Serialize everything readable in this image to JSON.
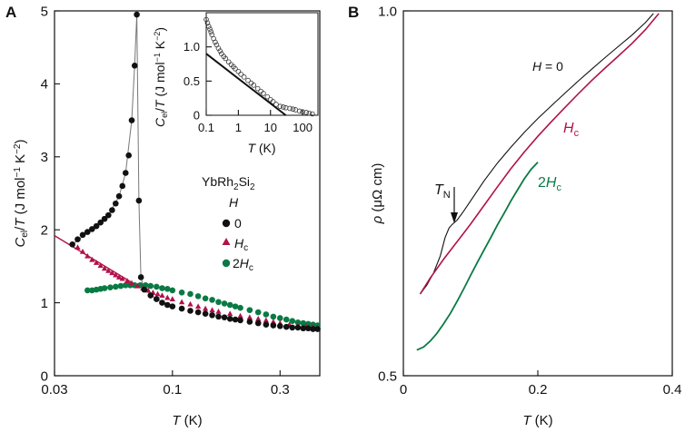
{
  "figure": {
    "panel_a_letter": "A",
    "panel_b_letter": "B",
    "colors": {
      "h0": "#111111",
      "hc": "#b0124a",
      "h2c": "#0a7a44",
      "fit": "#b0124a",
      "inset": "#333333"
    }
  },
  "chart_data": [
    {
      "type": "scatter",
      "panel": "A",
      "xscale": "log",
      "xlim": [
        0.03,
        0.45
      ],
      "ylim": [
        0,
        5
      ],
      "xlabel": "T (K)",
      "ylabel": "Cel/T (J mol−1 K−2)",
      "xticks": [
        0.03,
        0.1,
        0.3
      ],
      "xtick_labels": [
        "0.03",
        "0.1",
        "0.3"
      ],
      "yticks": [
        0,
        1,
        2,
        3,
        4,
        5
      ],
      "ytick_labels": [
        "0",
        "1",
        "2",
        "3",
        "4",
        "5"
      ],
      "legend": {
        "compound": "YbRh2Si2",
        "title": "H",
        "placement": "center-right"
      },
      "series": [
        {
          "name": "0",
          "marker": "circle",
          "color": "#111111",
          "x": [
            0.036,
            0.038,
            0.04,
            0.042,
            0.044,
            0.046,
            0.048,
            0.05,
            0.052,
            0.054,
            0.056,
            0.058,
            0.06,
            0.062,
            0.064,
            0.066,
            0.068,
            0.0695,
            0.071,
            0.0725,
            0.075,
            0.08,
            0.085,
            0.09,
            0.095,
            0.1,
            0.11,
            0.12,
            0.13,
            0.14,
            0.15,
            0.16,
            0.17,
            0.18,
            0.19,
            0.2,
            0.22,
            0.24,
            0.26,
            0.28,
            0.3,
            0.32,
            0.34,
            0.36,
            0.38,
            0.4,
            0.42,
            0.44
          ],
          "y": [
            1.8,
            1.87,
            1.93,
            1.97,
            2.01,
            2.05,
            2.1,
            2.15,
            2.2,
            2.27,
            2.36,
            2.46,
            2.6,
            2.78,
            3.02,
            3.5,
            4.25,
            4.95,
            2.4,
            1.35,
            1.18,
            1.1,
            1.05,
            1.0,
            0.97,
            0.95,
            0.92,
            0.89,
            0.87,
            0.85,
            0.83,
            0.81,
            0.8,
            0.78,
            0.77,
            0.76,
            0.74,
            0.72,
            0.7,
            0.69,
            0.68,
            0.67,
            0.66,
            0.66,
            0.65,
            0.65,
            0.64,
            0.64
          ]
        },
        {
          "name": "Hc",
          "marker": "triangle",
          "color": "#b0124a",
          "x": [
            0.038,
            0.04,
            0.042,
            0.044,
            0.046,
            0.048,
            0.05,
            0.052,
            0.054,
            0.056,
            0.058,
            0.06,
            0.063,
            0.066,
            0.07,
            0.074,
            0.078,
            0.082,
            0.086,
            0.09,
            0.095,
            0.1,
            0.11,
            0.12,
            0.13,
            0.14,
            0.15,
            0.16,
            0.18,
            0.2,
            0.22,
            0.24,
            0.26,
            0.28,
            0.3,
            0.33,
            0.36,
            0.39,
            0.42,
            0.44
          ],
          "y": [
            1.76,
            1.7,
            1.64,
            1.59,
            1.55,
            1.51,
            1.47,
            1.44,
            1.41,
            1.38,
            1.35,
            1.33,
            1.3,
            1.27,
            1.23,
            1.2,
            1.17,
            1.14,
            1.12,
            1.1,
            1.07,
            1.05,
            1.01,
            0.98,
            0.95,
            0.92,
            0.9,
            0.88,
            0.85,
            0.82,
            0.8,
            0.78,
            0.76,
            0.74,
            0.72,
            0.7,
            0.69,
            0.68,
            0.67,
            0.66
          ]
        },
        {
          "name": "2Hc",
          "marker": "circle",
          "color": "#0a7a44",
          "x": [
            0.042,
            0.044,
            0.046,
            0.048,
            0.05,
            0.053,
            0.056,
            0.059,
            0.062,
            0.065,
            0.068,
            0.072,
            0.076,
            0.08,
            0.085,
            0.09,
            0.095,
            0.1,
            0.11,
            0.12,
            0.13,
            0.14,
            0.15,
            0.16,
            0.17,
            0.18,
            0.19,
            0.2,
            0.22,
            0.24,
            0.26,
            0.28,
            0.3,
            0.32,
            0.34,
            0.36,
            0.38,
            0.4,
            0.42,
            0.44
          ],
          "y": [
            1.17,
            1.17,
            1.18,
            1.19,
            1.2,
            1.21,
            1.22,
            1.23,
            1.24,
            1.24,
            1.24,
            1.24,
            1.24,
            1.23,
            1.22,
            1.2,
            1.19,
            1.17,
            1.14,
            1.12,
            1.09,
            1.06,
            1.04,
            1.01,
            0.99,
            0.97,
            0.95,
            0.93,
            0.9,
            0.87,
            0.84,
            0.81,
            0.79,
            0.77,
            0.75,
            0.73,
            0.72,
            0.71,
            0.7,
            0.69
          ]
        }
      ],
      "fit_line": {
        "name": "Hc fit",
        "color": "#b0124a",
        "x": [
          0.03,
          0.07
        ],
        "y": [
          1.92,
          1.23
        ]
      },
      "connector_line": {
        "name": "0 field guide",
        "color": "#777777",
        "x": [
          0.036,
          0.044,
          0.052,
          0.058,
          0.062,
          0.066,
          0.068,
          0.0695,
          0.071,
          0.0725,
          0.075,
          0.085,
          0.1
        ],
        "y": [
          1.8,
          2.01,
          2.2,
          2.46,
          2.78,
          3.5,
          4.25,
          4.95,
          2.4,
          1.35,
          1.18,
          1.05,
          0.95
        ]
      }
    },
    {
      "type": "scatter",
      "panel": "A-inset",
      "xscale": "log",
      "xlim": [
        0.1,
        300
      ],
      "ylim": [
        0,
        1.5
      ],
      "xlabel": "T (K)",
      "ylabel": "Cel/T (J mol−1 K−2)",
      "xticks": [
        0.1,
        1,
        10,
        100
      ],
      "xtick_labels": [
        "0.1",
        "1",
        "10",
        "100"
      ],
      "yticks": [
        0,
        0.5,
        1.0
      ],
      "ytick_labels": [
        "0",
        "0.5",
        "1.0"
      ],
      "series": [
        {
          "name": "0",
          "marker": "open-circle",
          "color": "#333333",
          "x": [
            0.1,
            0.11,
            0.12,
            0.13,
            0.14,
            0.15,
            0.17,
            0.19,
            0.21,
            0.24,
            0.27,
            0.3,
            0.35,
            0.4,
            0.5,
            0.6,
            0.7,
            0.8,
            1.0,
            1.2,
            1.5,
            2,
            2.5,
            3,
            4,
            5,
            6,
            8,
            10,
            12,
            15,
            20,
            25,
            30,
            40,
            50,
            60,
            80,
            100,
            130,
            160,
            200
          ],
          "y": [
            1.4,
            1.35,
            1.3,
            1.26,
            1.22,
            1.18,
            1.12,
            1.07,
            1.03,
            0.98,
            0.94,
            0.9,
            0.86,
            0.83,
            0.78,
            0.74,
            0.71,
            0.68,
            0.64,
            0.6,
            0.56,
            0.51,
            0.47,
            0.44,
            0.39,
            0.35,
            0.32,
            0.27,
            0.23,
            0.2,
            0.16,
            0.13,
            0.12,
            0.11,
            0.1,
            0.09,
            0.08,
            0.06,
            0.05,
            0.04,
            0.03,
            0.02
          ]
        }
      ],
      "fit_line": {
        "name": "log fit",
        "color": "#111111",
        "x": [
          0.1,
          30
        ],
        "y": [
          0.9,
          0.0
        ]
      }
    },
    {
      "type": "line",
      "panel": "B",
      "xscale": "linear",
      "yscale": "log",
      "xlim": [
        0,
        0.4
      ],
      "ylim": [
        0.5,
        1.0
      ],
      "xlabel": "T (K)",
      "ylabel": "ρ (μΩ cm)",
      "xticks": [
        0,
        0.2,
        0.4
      ],
      "xtick_labels": [
        "0",
        "0.2",
        "0.4"
      ],
      "yticks": [
        0.5,
        1.0
      ],
      "ytick_labels": [
        "0.5",
        "1.0"
      ],
      "annotation": {
        "label": "TN",
        "x": 0.072,
        "y": 0.665
      },
      "series": [
        {
          "name": "H = 0",
          "color": "#111111",
          "x": [
            0.025,
            0.035,
            0.045,
            0.055,
            0.062,
            0.068,
            0.072,
            0.076,
            0.08,
            0.09,
            0.1,
            0.12,
            0.14,
            0.16,
            0.18,
            0.2,
            0.22,
            0.24,
            0.26,
            0.28,
            0.3,
            0.32,
            0.34,
            0.36,
            0.372
          ],
          "y": [
            0.584,
            0.594,
            0.608,
            0.628,
            0.65,
            0.662,
            0.666,
            0.669,
            0.672,
            0.684,
            0.697,
            0.724,
            0.749,
            0.772,
            0.794,
            0.815,
            0.835,
            0.855,
            0.875,
            0.895,
            0.915,
            0.935,
            0.955,
            0.978,
            0.995
          ]
        },
        {
          "name": "Hc",
          "color": "#b0124a",
          "x": [
            0.025,
            0.04,
            0.06,
            0.08,
            0.1,
            0.12,
            0.14,
            0.16,
            0.18,
            0.2,
            0.22,
            0.24,
            0.26,
            0.28,
            0.3,
            0.32,
            0.34,
            0.36,
            0.38
          ],
          "y": [
            0.584,
            0.602,
            0.624,
            0.645,
            0.667,
            0.691,
            0.716,
            0.741,
            0.765,
            0.788,
            0.81,
            0.832,
            0.854,
            0.876,
            0.897,
            0.918,
            0.94,
            0.965,
            0.995
          ]
        },
        {
          "name": "2Hc",
          "color": "#0a7a44",
          "x": [
            0.02,
            0.03,
            0.04,
            0.05,
            0.06,
            0.07,
            0.08,
            0.09,
            0.1,
            0.11,
            0.12,
            0.13,
            0.14,
            0.15,
            0.16,
            0.17,
            0.18,
            0.19,
            0.2
          ],
          "y": [
            0.525,
            0.528,
            0.534,
            0.542,
            0.552,
            0.563,
            0.576,
            0.59,
            0.605,
            0.62,
            0.635,
            0.65,
            0.666,
            0.681,
            0.697,
            0.712,
            0.727,
            0.74,
            0.75
          ]
        }
      ]
    }
  ],
  "panel_a_text": {
    "compound_base": "YbRh",
    "compound_sub1": "2",
    "compound_mid": "Si",
    "compound_sub2": "2",
    "legend_title": "H",
    "legend_0": "0",
    "legend_hc_main": "H",
    "legend_hc_sub": "c",
    "legend_2hc_pre": "2",
    "legend_2hc_main": "H",
    "legend_2hc_sub": "c",
    "ylabel_C": "C",
    "ylabel_el": "el",
    "ylabel_rest1": "/",
    "ylabel_T": "T",
    "ylabel_rest2": " (J mol",
    "ylabel_exp1": "−1",
    "ylabel_rest3": " K",
    "ylabel_exp2": "−2",
    "ylabel_rest4": ")",
    "xlabel_T": "T",
    "xlabel_unit": " (K)"
  },
  "panel_b_text": {
    "label_h0_H": "H",
    "label_h0_rest": " = 0",
    "label_hc_main": "H",
    "label_hc_sub": "c",
    "label_2hc_pre": "2",
    "label_2hc_main": "H",
    "label_2hc_sub": "c",
    "tn_main": "T",
    "tn_sub": "N",
    "ylabel_rho": "ρ",
    "ylabel_unit": " (μΩ cm)",
    "xlabel_T": "T",
    "xlabel_unit": " (K)"
  }
}
